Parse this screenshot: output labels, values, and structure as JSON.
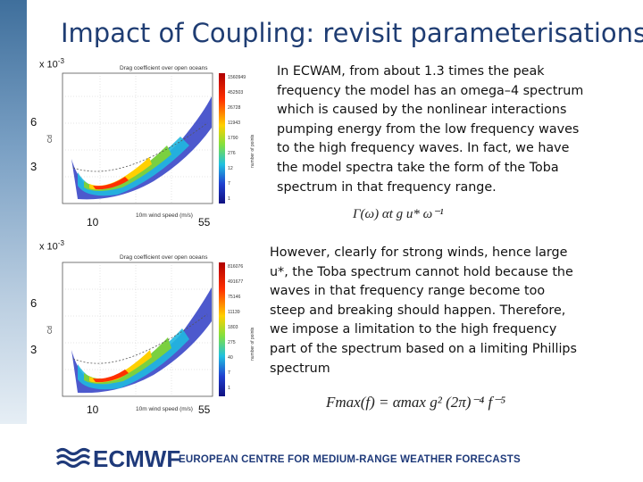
{
  "slide": {
    "title": "Impact of Coupling: revisit parameterisations"
  },
  "plot_top": {
    "scale_base": "x 10",
    "scale_exp": "-3",
    "y_tick_upper": "6",
    "y_tick_lower": "3",
    "x_tick_left": "10",
    "x_tick_right": "55",
    "inner_title": "Drag coefficient over open oceans",
    "inner_xlabel": "10m wind speed (m/s)",
    "inner_ylabel": "Cd",
    "colorbar_ticks": [
      "1560949",
      "452503",
      "26728",
      "11943",
      "1790",
      "276",
      "12",
      "7",
      "1"
    ],
    "colorbar_label": "number of points"
  },
  "plot_bottom": {
    "scale_base": "x 10",
    "scale_exp": "-3",
    "y_tick_upper": "6",
    "y_tick_lower": "3",
    "x_tick_left": "10",
    "x_tick_right": "55",
    "inner_title": "Drag coefficient over open oceans",
    "inner_xlabel": "10m wind speed (m/s)",
    "inner_ylabel": "Cd",
    "colorbar_ticks": [
      "816076",
      "491677",
      "75146",
      "11139",
      "1803",
      "275",
      "40",
      "7",
      "1"
    ],
    "colorbar_label": "number of points"
  },
  "text": {
    "paragraph1": "In ECWAM, from about 1.3 times the peak frequency the model has an omega–4 spectrum which is caused by the nonlinear interactions pumping energy from the low frequency waves to the high frequency waves. In fact, we have the model spectra take the form of the Toba spectrum in that frequency range.",
    "paragraph2": "However, clearly for strong winds, hence large u*, the Toba spectrum cannot hold because the waves in that frequency range become too steep and breaking should happen. Therefore, we impose a limitation to the high frequency part of the spectrum based on a limiting Phillips spectrum",
    "formula_toba": "Γ(ω)   αt g u* ω⁻¹",
    "formula_phillips": "Fmax(f) = αmax g² (2π)⁻⁴ f⁻⁵"
  },
  "footer": {
    "logo_text": "ECMWF",
    "centre_name": "EUROPEAN CENTRE FOR MEDIUM-RANGE WEATHER FORECASTS",
    "brand_color": "#1f3a7a"
  }
}
